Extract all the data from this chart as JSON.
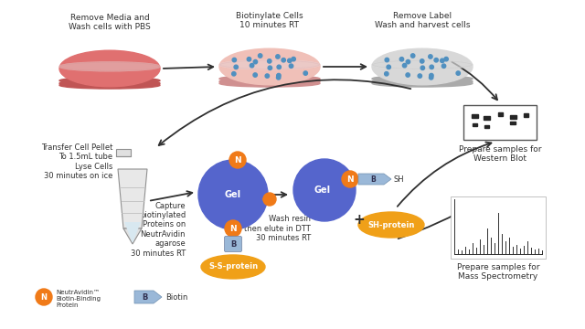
{
  "bg_color": "#ffffff",
  "step1_label": "Remove Media and\nWash cells with PBS",
  "step2_label": "Biotinylate Cells\n10 minutes RT",
  "step3_label": "Remove Label\nWash and harvest cells",
  "step4_label": "Transfer Cell Pellet\nTo 1.5mL tube\nLyse Cells\n30 minutes on ice",
  "step5_label": "Capture\nbiotinylated\nProteins on\nNeutrAvidin\nagarose\n30 minutes RT",
  "step6_label": "Wash resin\nthen elute in DTT\n30 minutes RT",
  "wb_label": "Prepare samples for\nWestern Blot",
  "ms_label": "Prepare samples for\nMass Spectrometry",
  "legend_N_label": "NeutrAvidin™\nBiotin-Binding\nProtein",
  "legend_B_label": "Biotin",
  "dish_red_fill": "#e07070",
  "dish_red_rim": "#c05555",
  "dish_pink_fill": "#f0c0b8",
  "dish_pink_rim": "#d09090",
  "dish_gray_fill": "#d8d8d8",
  "dish_gray_rim": "#aaaaaa",
  "gel_color": "#5565cc",
  "N_color": "#f07a18",
  "B_color": "#9ab8d8",
  "protein_color": "#f0a018",
  "dot_color": "#5090c0",
  "arrow_color": "#303030",
  "text_color": "#303030",
  "ts": 6.5
}
